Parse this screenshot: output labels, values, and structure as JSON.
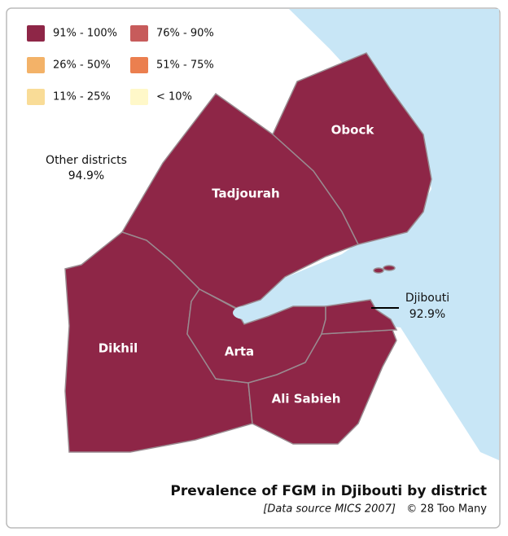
{
  "legend": [
    {
      "label": "91% - 100%",
      "color": "#8e2647"
    },
    {
      "label": "76% - 90%",
      "color": "#c75b5b"
    },
    {
      "label": "26% - 50%",
      "color": "#f3b268"
    },
    {
      "label": "51% - 75%",
      "color": "#eb7f4f"
    },
    {
      "label": "11% - 25%",
      "color": "#f9dc97"
    },
    {
      "label": "< 10%",
      "color": "#fff8c9"
    }
  ],
  "districts": [
    {
      "name": "Obock"
    },
    {
      "name": "Tadjourah"
    },
    {
      "name": "Dikhil"
    },
    {
      "name": "Arta"
    },
    {
      "name": "Ali Sabieh"
    }
  ],
  "annotations": [
    {
      "label": "Other districts",
      "value": "94.9%"
    },
    {
      "label": "Djibouti",
      "value": "92.9%"
    }
  ],
  "title": "Prevalence of FGM in Djibouti by district",
  "source": "[Data source MICS 2007]",
  "credit": "© 28 Too Many"
}
